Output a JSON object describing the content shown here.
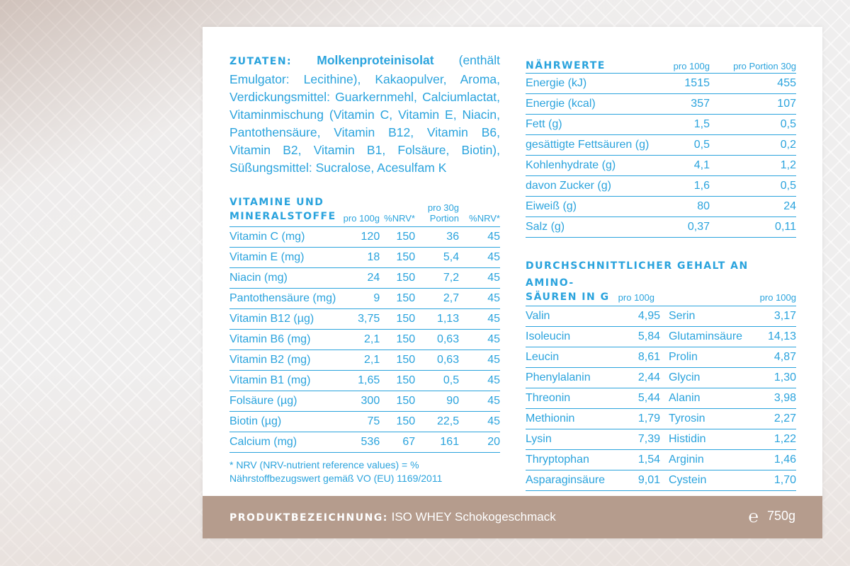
{
  "ingredients": {
    "label": "ZUTATEN:",
    "main": "Molkenproteinisolat",
    "text": "(enthält Emulgator: Lecithine), Kakaopulver, Aroma, Verdickungsmittel: Guarkernmehl, Calciumlactat, Vitaminmischung (Vitamin C, Vitamin E, Niacin, Pantothensäure, Vitamin B12, Vitamin B6, Vitamin B2, Vitamin B1, Folsäure, Biotin), Süßungsmittel: Sucralose, Acesulfam K"
  },
  "vitamins": {
    "title_line1": "VITAMINE UND",
    "title_line2": "MINERALSTOFFE",
    "col_per100": "pro 100g",
    "col_nrv1": "%NRV*",
    "col_portion_line1": "pro 30g",
    "col_portion_line2": "Portion",
    "col_nrv2": "%NRV*",
    "rows": [
      {
        "name": "Vitamin C (mg)",
        "per100": "120",
        "nrv1": "150",
        "portion": "36",
        "nrv2": "45"
      },
      {
        "name": "Vitamin E (mg)",
        "per100": "18",
        "nrv1": "150",
        "portion": "5,4",
        "nrv2": "45"
      },
      {
        "name": "Niacin (mg)",
        "per100": "24",
        "nrv1": "150",
        "portion": "7,2",
        "nrv2": "45"
      },
      {
        "name": "Pantothensäure (mg)",
        "per100": "9",
        "nrv1": "150",
        "portion": "2,7",
        "nrv2": "45"
      },
      {
        "name": "Vitamin B12 (µg)",
        "per100": "3,75",
        "nrv1": "150",
        "portion": "1,13",
        "nrv2": "45"
      },
      {
        "name": "Vitamin B6 (mg)",
        "per100": "2,1",
        "nrv1": "150",
        "portion": "0,63",
        "nrv2": "45"
      },
      {
        "name": "Vitamin B2 (mg)",
        "per100": "2,1",
        "nrv1": "150",
        "portion": "0,63",
        "nrv2": "45"
      },
      {
        "name": "Vitamin B1 (mg)",
        "per100": "1,65",
        "nrv1": "150",
        "portion": "0,5",
        "nrv2": "45"
      },
      {
        "name": "Folsäure (µg)",
        "per100": "300",
        "nrv1": "150",
        "portion": "90",
        "nrv2": "45"
      },
      {
        "name": "Biotin (µg)",
        "per100": "75",
        "nrv1": "150",
        "portion": "22,5",
        "nrv2": "45"
      },
      {
        "name": "Calcium (mg)",
        "per100": "536",
        "nrv1": "67",
        "portion": "161",
        "nrv2": "20"
      }
    ],
    "footnote": "* NRV (NRV-nutrient reference values) = % Nährstoffbezugswert gemäß VO (EU) 1169/2011"
  },
  "nutrition": {
    "title": "NÄHRWERTE",
    "col_per100": "pro 100g",
    "col_portion": "pro Portion 30g",
    "rows": [
      {
        "name": "Energie (kJ)",
        "per100": "1515",
        "portion": "455"
      },
      {
        "name": "Energie (kcal)",
        "per100": "357",
        "portion": "107"
      },
      {
        "name": "Fett (g)",
        "per100": "1,5",
        "portion": "0,5"
      },
      {
        "name": "gesättigte Fettsäuren (g)",
        "per100": "0,5",
        "portion": "0,2"
      },
      {
        "name": "Kohlenhydrate (g)",
        "per100": "4,1",
        "portion": "1,2"
      },
      {
        "name": "davon Zucker (g)",
        "per100": "1,6",
        "portion": "0,5"
      },
      {
        "name": "Eiweiß (g)",
        "per100": "80",
        "portion": "24"
      },
      {
        "name": "Salz (g)",
        "per100": "0,37",
        "portion": "0,11"
      }
    ]
  },
  "amino": {
    "title_line1": "DURCHSCHNITTLICHER GEHALT AN AMINO-",
    "title_line2": "SÄUREN IN G",
    "col_per100_a": "pro 100g",
    "col_per100_b": "pro 100g",
    "rows": [
      {
        "a_name": "Valin",
        "a_val": "4,95",
        "b_name": "Serin",
        "b_val": "3,17"
      },
      {
        "a_name": "Isoleucin",
        "a_val": "5,84",
        "b_name": "Glutaminsäure",
        "b_val": "14,13"
      },
      {
        "a_name": "Leucin",
        "a_val": "8,61",
        "b_name": "Prolin",
        "b_val": "4,87"
      },
      {
        "a_name": "Phenylalanin",
        "a_val": "2,44",
        "b_name": "Glycin",
        "b_val": "1,30"
      },
      {
        "a_name": "Threonin",
        "a_val": "5,44",
        "b_name": "Alanin",
        "b_val": "3,98"
      },
      {
        "a_name": "Methionin",
        "a_val": "1,79",
        "b_name": "Tyrosin",
        "b_val": "2,27"
      },
      {
        "a_name": "Lysin",
        "a_val": "7,39",
        "b_name": "Histidin",
        "b_val": "1,22"
      },
      {
        "a_name": "Thryptophan",
        "a_val": "1,54",
        "b_name": "Arginin",
        "b_val": "1,46"
      },
      {
        "a_name": "Asparaginsäure",
        "a_val": "9,01",
        "b_name": "Cystein",
        "b_val": "1,70"
      }
    ]
  },
  "footer": {
    "label": "PRODUKTBEZEICHNUNG:",
    "product": "ISO WHEY Schokogeschmack",
    "e_mark": "℮",
    "weight": "750g"
  },
  "colors": {
    "text_blue": "#2aa3dd",
    "footer_bg": "#b59c8d",
    "panel_bg": "#ffffff"
  }
}
